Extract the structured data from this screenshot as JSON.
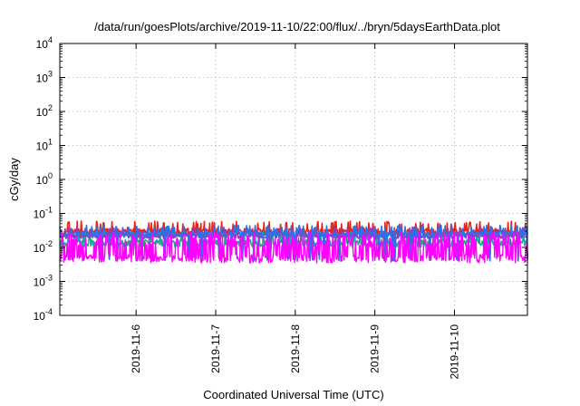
{
  "chart_data": {
    "type": "line",
    "title": "/data/run/goesPlots/archive/2019-11-10/22:00/flux/../bryn/5daysEarthData.plot",
    "xlabel": "Coordinated Universal Time (UTC)",
    "ylabel": "cGy/day",
    "yscale": "log",
    "ylim_exponents": [
      -4,
      4
    ],
    "y_ticks": [
      {
        "base": "10",
        "exp": "-4"
      },
      {
        "base": "10",
        "exp": "-3"
      },
      {
        "base": "10",
        "exp": "-2"
      },
      {
        "base": "10",
        "exp": "-1"
      },
      {
        "base": "10",
        "exp": "0"
      },
      {
        "base": "10",
        "exp": "1"
      },
      {
        "base": "10",
        "exp": "2"
      },
      {
        "base": "10",
        "exp": "3"
      },
      {
        "base": "10",
        "exp": "4"
      }
    ],
    "x_range": [
      "2019-11-05T01:00",
      "2019-11-10T22:00"
    ],
    "x_ticks": [
      "2019-11-6",
      "2019-11-7",
      "2019-11-8",
      "2019-11-9",
      "2019-11-10"
    ],
    "grid": true,
    "legend": "none",
    "series": [
      {
        "color": "#e8231b",
        "ylow": 0.014,
        "yhigh": 0.06,
        "dip_to": 0.004
      },
      {
        "color": "#1fa89a",
        "ylow": 0.006,
        "yhigh": 0.03,
        "dip_to": 0.004
      },
      {
        "color": "#8e3fb5",
        "ylow": 0.012,
        "yhigh": 0.04,
        "dip_to": 0.004
      },
      {
        "color": "#2f6fe8",
        "ylow": 0.013,
        "yhigh": 0.045,
        "dip_to": 0.004
      },
      {
        "color": "#ff00ff",
        "ylow": 0.0035,
        "yhigh": 0.028,
        "dip_to": 0.0032
      }
    ]
  }
}
